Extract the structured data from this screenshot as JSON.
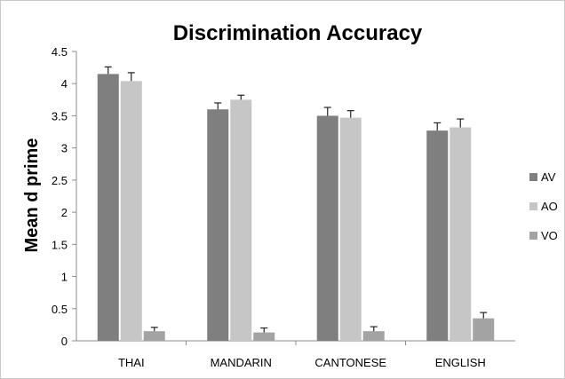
{
  "chart_data": {
    "type": "bar",
    "title": "Discrimination Accuracy",
    "xlabel": "",
    "ylabel": "Mean d prime",
    "ylim": [
      0,
      4.5
    ],
    "yticks": [
      "0",
      "0.5",
      "1",
      "1.5",
      "2",
      "2.5",
      "3",
      "3.5",
      "4",
      "4.5"
    ],
    "categories": [
      "THAI",
      "MANDARIN",
      "CANTONESE",
      "ENGLISH"
    ],
    "series": [
      {
        "name": "AV",
        "color": "#7f7f7f",
        "values": [
          4.15,
          3.6,
          3.5,
          3.27
        ],
        "errors": [
          0.11,
          0.1,
          0.13,
          0.12
        ]
      },
      {
        "name": "AO",
        "color": "#c6c6c6",
        "values": [
          4.04,
          3.75,
          3.47,
          3.32
        ],
        "errors": [
          0.13,
          0.07,
          0.11,
          0.13
        ]
      },
      {
        "name": "VO",
        "color": "#a3a3a3",
        "values": [
          0.15,
          0.13,
          0.15,
          0.35
        ],
        "errors": [
          0.06,
          0.07,
          0.07,
          0.09
        ]
      }
    ],
    "grid": false,
    "legend": "right"
  }
}
